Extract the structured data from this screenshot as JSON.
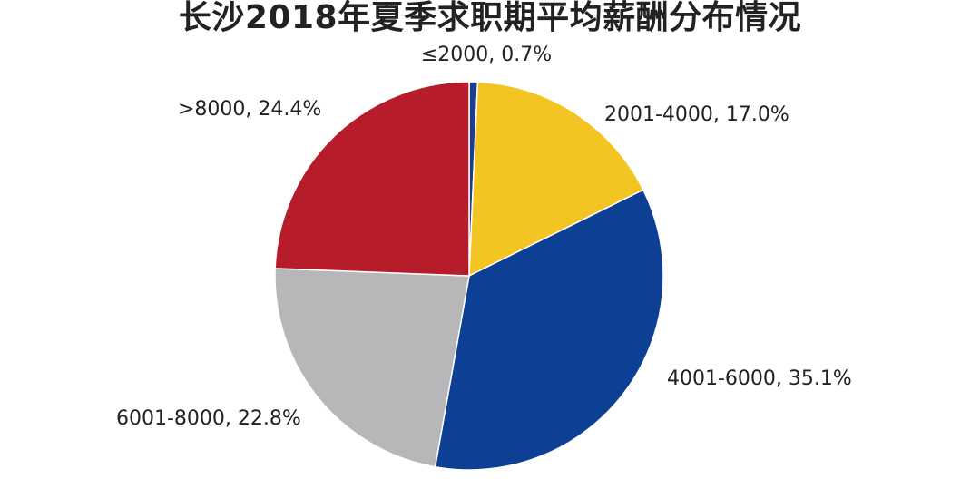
{
  "chart_data": {
    "type": "pie",
    "title": "长沙2018年夏季求职期平均薪酬分布情况",
    "start_angle_deg": 0,
    "direction": "clockwise",
    "slices": [
      {
        "category": "≤2000",
        "value": 0.7,
        "label": "≤2000, 0.7%",
        "color": "#1f3f8a"
      },
      {
        "category": "2001-4000",
        "value": 17.0,
        "label": "2001-4000, 17.0%",
        "color": "#f2c522"
      },
      {
        "category": "4001-6000",
        "value": 35.1,
        "label": "4001-6000, 35.1%",
        "color": "#0d3f94"
      },
      {
        "category": "6001-8000",
        "value": 22.8,
        "label": "6001-8000, 22.8%",
        "color": "#b7b7b9"
      },
      {
        "category": ">8000",
        "value": 24.4,
        "label": ">8000, 24.4%",
        "color": "#b71c2a"
      }
    ]
  }
}
